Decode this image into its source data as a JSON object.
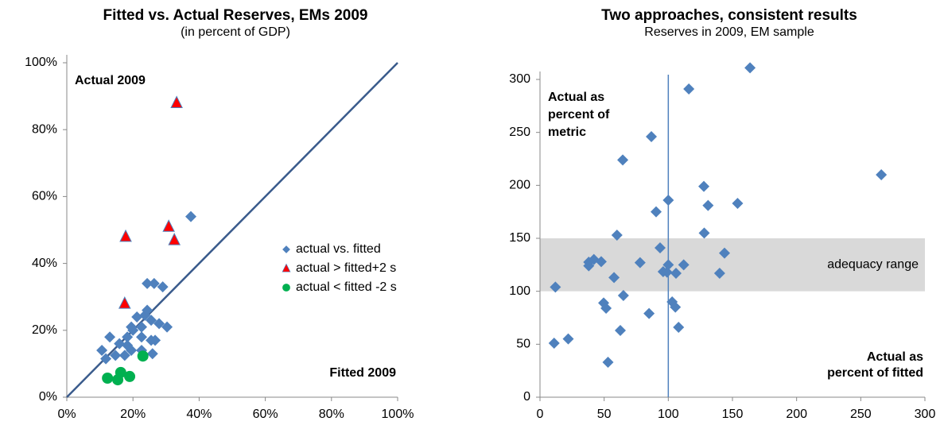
{
  "chart_data": [
    {
      "type": "scatter",
      "title": "Fitted vs. Actual Reserves, EMs 2009",
      "subtitle": "(in percent of GDP)",
      "xlim": [
        0,
        100
      ],
      "ylim": [
        0,
        100
      ],
      "xticks": [
        {
          "value": 0,
          "label": "0%"
        },
        {
          "value": 20,
          "label": "20%"
        },
        {
          "value": 40,
          "label": "40%"
        },
        {
          "value": 60,
          "label": "60%"
        },
        {
          "value": 80,
          "label": "80%"
        },
        {
          "value": 100,
          "label": "100%"
        }
      ],
      "yticks": [
        {
          "value": 0,
          "label": "0%"
        },
        {
          "value": 20,
          "label": "20%"
        },
        {
          "value": 40,
          "label": "40%"
        },
        {
          "value": 60,
          "label": "60%"
        },
        {
          "value": 80,
          "label": "80%"
        },
        {
          "value": 100,
          "label": "100%"
        }
      ],
      "diagonal": true,
      "legend": "right",
      "annotations": [
        [
          "Actual 2009"
        ],
        [
          "Fitted 2009"
        ]
      ],
      "series": [
        {
          "name": "actual vs. fitted",
          "color": "#4f81bd",
          "marker": "diamond",
          "x": [
            37.5,
            24.3,
            26.4,
            29,
            30.3,
            27.9,
            25.5,
            23.6,
            24.3,
            21.2,
            22.6,
            19.5,
            20,
            18.3,
            22.6,
            25.5,
            26.7,
            25.9,
            18.3,
            15.9,
            13,
            10.6,
            11.8,
            14.7,
            17.5,
            19.5,
            22.6
          ],
          "values": [
            54,
            34,
            34,
            33,
            21,
            22,
            23,
            24.5,
            26,
            24,
            21,
            21,
            20,
            18,
            18,
            17,
            17,
            13,
            15.5,
            16,
            18,
            14,
            11.5,
            12.5,
            12.5,
            14,
            14
          ]
        },
        {
          "name": "actual > fitted+2 s",
          "color": "#ff0000",
          "marker": "triangle",
          "x": [
            33.2,
            17.8,
            30.8,
            32.5,
            17.5
          ],
          "values": [
            88,
            48,
            51,
            47,
            28
          ]
        },
        {
          "name": "actual < fitted -2 s",
          "color": "#00b050",
          "marker": "circle",
          "x": [
            12.3,
            15.4,
            16.3,
            19,
            23
          ],
          "values": [
            5.7,
            5.2,
            7.4,
            6.2,
            12.3
          ]
        }
      ]
    },
    {
      "type": "scatter",
      "title": "Two approaches, consistent results",
      "subtitle": "Reserves in 2009, EM sample",
      "xlim": [
        0,
        300
      ],
      "ylim": [
        0,
        300
      ],
      "xticks": [
        0,
        50,
        100,
        150,
        200,
        250,
        300
      ],
      "yticks": [
        0,
        50,
        100,
        150,
        200,
        250,
        300
      ],
      "band": {
        "from": 100,
        "to": 150,
        "label": "adequacy range",
        "color": "#d9d9d9"
      },
      "vline": 100,
      "annotations": [
        [
          "Actual as",
          "percent of",
          "metric"
        ],
        [
          "Actual as",
          "percent of fitted"
        ]
      ],
      "series": [
        {
          "color": "#4f81bd",
          "marker": "diamond",
          "x": [
            163.7,
            116,
            86.8,
            266,
            64.5,
            127.7,
            154,
            100,
            131,
            90.5,
            128,
            60,
            93.6,
            143.8,
            42,
            38,
            47.7,
            78,
            100,
            112,
            38,
            96,
            106,
            140,
            99,
            57.7,
            12,
            11,
            22,
            49.6,
            51.5,
            65,
            103,
            105.5,
            85,
            62.6,
            108,
            53
          ],
          "values": [
            311,
            291,
            246,
            210,
            224,
            199,
            183,
            186,
            181,
            175,
            155,
            153,
            141,
            136,
            130,
            127.5,
            128,
            127,
            125,
            125,
            124,
            118.5,
            117,
            117,
            118,
            113,
            104,
            51,
            55,
            89,
            84,
            96,
            90,
            85,
            79,
            63,
            66,
            33
          ]
        }
      ]
    }
  ]
}
